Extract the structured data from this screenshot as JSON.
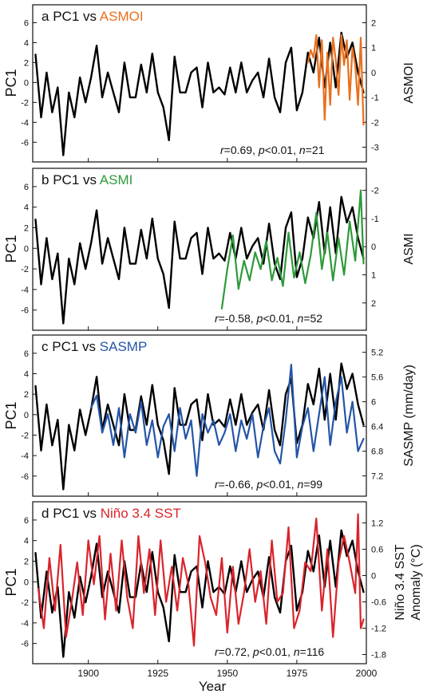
{
  "figure": {
    "xlabel": "Year",
    "xticks": [
      1900,
      1925,
      1950,
      1975,
      2000
    ],
    "xlim": [
      1880,
      2000
    ]
  },
  "chart_data": [
    {
      "type": "line",
      "panel_letter": "a",
      "title_left": "PC1 vs",
      "title_right": "ASMOI",
      "ylabel": "PC1",
      "right_ylabel": "ASMOI",
      "ylim": [
        -7.5,
        7
      ],
      "yticks": [
        -6,
        -4,
        -2,
        0,
        2,
        4,
        6
      ],
      "right_ylim": [
        -3.4,
        2.4
      ],
      "right_yticks": [
        -3,
        -2,
        -1,
        0,
        1,
        2
      ],
      "right_inverted": false,
      "stat": {
        "r_label": "r",
        "r_value": "=0.69, ",
        "p_label": "p",
        "p_value": "<0.01, ",
        "n_label": "n",
        "n_value": "=21"
      },
      "series": [
        {
          "name": "PC1",
          "color": "#000000",
          "axis": "left",
          "x": [
            1881,
            1883,
            1885,
            1887,
            1889,
            1891,
            1893,
            1895,
            1897,
            1899,
            1901,
            1903,
            1905,
            1907,
            1909,
            1911,
            1913,
            1915,
            1917,
            1919,
            1921,
            1923,
            1925,
            1927,
            1929,
            1931,
            1933,
            1935,
            1937,
            1939,
            1941,
            1943,
            1945,
            1947,
            1949,
            1951,
            1953,
            1955,
            1957,
            1959,
            1961,
            1963,
            1965,
            1967,
            1969,
            1971,
            1973,
            1975,
            1977,
            1979,
            1981,
            1983,
            1985,
            1987,
            1989,
            1991,
            1993,
            1995,
            1997,
            1999
          ],
          "values": [
            2.8,
            -3.5,
            1,
            -3,
            -0.5,
            -7.3,
            -1,
            -3.5,
            0.5,
            -2,
            0.5,
            3.7,
            -1.5,
            1,
            -1,
            -3,
            2,
            -1.5,
            -1.5,
            1.8,
            -1,
            2.9,
            -1,
            -2.5,
            -5.8,
            2.6,
            -1,
            -1,
            1,
            1.5,
            -2.5,
            2,
            -1,
            -0.5,
            -1.2,
            1.5,
            -1,
            2,
            -1,
            0.2,
            1,
            -1.5,
            2.4,
            -1.5,
            -3,
            2,
            3.5,
            -2.8,
            -1,
            3,
            1,
            4.5,
            -0.5,
            4,
            -0.5,
            5,
            2.5,
            4,
            1,
            -1
          ]
        },
        {
          "name": "ASMOI",
          "color": "#e8701e",
          "axis": "right",
          "x": [
            1979,
            1980,
            1981,
            1982,
            1983,
            1984,
            1985,
            1986,
            1987,
            1988,
            1989,
            1990,
            1991,
            1992,
            1993,
            1994,
            1995,
            1996,
            1997,
            1998,
            1999
          ],
          "values": [
            0.4,
            0.9,
            0.6,
            1.5,
            -0.6,
            1.3,
            -1.9,
            0.8,
            -1.3,
            1.4,
            0.5,
            -0.9,
            1.5,
            0.3,
            1.3,
            -1.1,
            1.0,
            0.3,
            -1.3,
            1.4,
            -2.1
          ]
        }
      ]
    },
    {
      "type": "line",
      "panel_letter": "b",
      "title_left": "PC1 vs",
      "title_right": "ASMI",
      "ylabel": "PC1",
      "right_ylabel": "ASMI",
      "ylim": [
        -7.5,
        7
      ],
      "yticks": [
        -6,
        -4,
        -2,
        0,
        2,
        4,
        6
      ],
      "right_ylim": [
        2.8,
        -2.5
      ],
      "right_yticks": [
        -2,
        -1,
        0,
        1,
        2
      ],
      "right_inverted": true,
      "stat": {
        "r_label": "r",
        "r_value": "=-0.58, ",
        "p_label": "p",
        "p_value": "<0.01, ",
        "n_label": "n",
        "n_value": "=52"
      },
      "series": [
        {
          "name": "PC1",
          "color": "#000000",
          "axis": "left",
          "x": [
            1881,
            1883,
            1885,
            1887,
            1889,
            1891,
            1893,
            1895,
            1897,
            1899,
            1901,
            1903,
            1905,
            1907,
            1909,
            1911,
            1913,
            1915,
            1917,
            1919,
            1921,
            1923,
            1925,
            1927,
            1929,
            1931,
            1933,
            1935,
            1937,
            1939,
            1941,
            1943,
            1945,
            1947,
            1949,
            1951,
            1953,
            1955,
            1957,
            1959,
            1961,
            1963,
            1965,
            1967,
            1969,
            1971,
            1973,
            1975,
            1977,
            1979,
            1981,
            1983,
            1985,
            1987,
            1989,
            1991,
            1993,
            1995,
            1997,
            1999
          ],
          "values": [
            2.8,
            -3.5,
            1,
            -3,
            -0.5,
            -7.3,
            -1,
            -3.5,
            0.5,
            -2,
            0.5,
            3.7,
            -1.5,
            1,
            -1,
            -3,
            2,
            -1.5,
            -1.5,
            1.8,
            -1,
            2.9,
            -1,
            -2.5,
            -5.8,
            2.6,
            -1,
            -1,
            1,
            1.5,
            -2.5,
            2,
            -1,
            -0.5,
            -1.2,
            1.5,
            -1,
            2,
            -1,
            0.2,
            1,
            -1.5,
            2.4,
            -1.5,
            -3,
            2,
            3.5,
            -2.8,
            -1,
            3,
            1,
            4.5,
            -0.5,
            4,
            -0.5,
            5,
            2.5,
            4,
            1,
            -1
          ]
        },
        {
          "name": "ASMI",
          "color": "#2e9a3a",
          "axis": "right",
          "x": [
            1948,
            1950,
            1952,
            1954,
            1956,
            1958,
            1960,
            1962,
            1964,
            1966,
            1968,
            1970,
            1972,
            1974,
            1976,
            1978,
            1980,
            1982,
            1984,
            1986,
            1988,
            1990,
            1992,
            1994,
            1996,
            1998,
            1999
          ],
          "values": [
            2.2,
            0.8,
            -0.4,
            1.5,
            0.5,
            1.2,
            0.2,
            0.8,
            -0.2,
            1.2,
            0.4,
            1.4,
            -0.5,
            1.1,
            0.2,
            1.3,
            0.3,
            -1.2,
            0.8,
            -0.5,
            1.2,
            -0.3,
            1.0,
            -0.9,
            0.5,
            -2.0,
            0.6
          ]
        }
      ]
    },
    {
      "type": "line",
      "panel_letter": "c",
      "title_left": "PC1 vs",
      "title_right": "SASMP",
      "ylabel": "PC1",
      "right_ylabel": "SASMP (mm/day)",
      "ylim": [
        -7.5,
        7
      ],
      "yticks": [
        -6,
        -4,
        -2,
        0,
        2,
        4,
        6
      ],
      "right_ylim": [
        7.45,
        5.05
      ],
      "right_yticks": [
        5.2,
        5.6,
        6,
        6.4,
        6.8,
        7.2
      ],
      "right_inverted": true,
      "stat": {
        "r_label": "r",
        "r_value": "=-0.66, ",
        "p_label": "p",
        "p_value": "<0.01, ",
        "n_label": "n",
        "n_value": "=99"
      },
      "series": [
        {
          "name": "PC1",
          "color": "#000000",
          "axis": "left",
          "x": [
            1881,
            1883,
            1885,
            1887,
            1889,
            1891,
            1893,
            1895,
            1897,
            1899,
            1901,
            1903,
            1905,
            1907,
            1909,
            1911,
            1913,
            1915,
            1917,
            1919,
            1921,
            1923,
            1925,
            1927,
            1929,
            1931,
            1933,
            1935,
            1937,
            1939,
            1941,
            1943,
            1945,
            1947,
            1949,
            1951,
            1953,
            1955,
            1957,
            1959,
            1961,
            1963,
            1965,
            1967,
            1969,
            1971,
            1973,
            1975,
            1977,
            1979,
            1981,
            1983,
            1985,
            1987,
            1989,
            1991,
            1993,
            1995,
            1997,
            1999
          ],
          "values": [
            2.8,
            -3.5,
            1,
            -3,
            -0.5,
            -7.3,
            -1,
            -3.5,
            0.5,
            -2,
            0.5,
            3.7,
            -1.5,
            1,
            -1,
            -3,
            2,
            -1.5,
            -1.5,
            1.8,
            -1,
            2.9,
            -1,
            -2.5,
            -5.8,
            2.6,
            -1,
            -1,
            1,
            1.5,
            -2.5,
            2,
            -1,
            -0.5,
            -1.2,
            1.5,
            -1,
            2,
            -1,
            0.2,
            1,
            -1.5,
            2.4,
            -1.5,
            -3,
            2,
            3.5,
            -2.8,
            -1,
            3,
            1,
            4.5,
            -0.5,
            4,
            -0.5,
            5,
            2.5,
            4,
            1,
            -1
          ]
        },
        {
          "name": "SASMP",
          "color": "#2455a8",
          "axis": "right",
          "x": [
            1901,
            1903,
            1905,
            1907,
            1909,
            1911,
            1913,
            1915,
            1917,
            1919,
            1921,
            1923,
            1925,
            1927,
            1929,
            1931,
            1933,
            1935,
            1937,
            1939,
            1941,
            1943,
            1945,
            1947,
            1949,
            1951,
            1953,
            1955,
            1957,
            1959,
            1961,
            1963,
            1965,
            1967,
            1969,
            1971,
            1973,
            1975,
            1977,
            1979,
            1981,
            1983,
            1985,
            1987,
            1989,
            1991,
            1993,
            1995,
            1997,
            1999
          ],
          "values": [
            6.1,
            5.9,
            6.5,
            6.2,
            6.7,
            6.1,
            6.9,
            6.2,
            6.5,
            6.0,
            6.7,
            6.3,
            6.9,
            6.4,
            6.2,
            6.8,
            6.1,
            6.6,
            6.3,
            7.2,
            6.2,
            6.5,
            6.3,
            6.7,
            6.5,
            6.2,
            6.8,
            6.3,
            6.6,
            6.2,
            6.9,
            6.4,
            6.1,
            6.8,
            7.0,
            6.3,
            5.4,
            6.9,
            6.4,
            6.1,
            6.8,
            6.2,
            5.6,
            6.7,
            6.0,
            5.6,
            6.5,
            6.0,
            6.8,
            6.6
          ]
        }
      ]
    },
    {
      "type": "line",
      "panel_letter": "d",
      "title_left": "PC1 vs",
      "title_right": "Niño 3.4 SST",
      "ylabel": "PC1",
      "right_ylabel_lines": [
        "Niño 3.4 SST",
        "Anomaly (°C)"
      ],
      "ylim": [
        -7.5,
        7
      ],
      "yticks": [
        -6,
        -4,
        -2,
        0,
        2,
        4,
        6
      ],
      "right_ylim": [
        -1.9,
        1.5
      ],
      "right_yticks": [
        -1.8,
        -1.2,
        -0.6,
        0,
        0.6,
        1.2
      ],
      "right_inverted": false,
      "stat": {
        "r_label": "r",
        "r_value": "=0.72, ",
        "p_label": "p",
        "p_value": "<0.01, ",
        "n_label": "n",
        "n_value": "=116"
      },
      "series": [
        {
          "name": "PC1",
          "color": "#000000",
          "axis": "left",
          "x": [
            1881,
            1883,
            1885,
            1887,
            1889,
            1891,
            1893,
            1895,
            1897,
            1899,
            1901,
            1903,
            1905,
            1907,
            1909,
            1911,
            1913,
            1915,
            1917,
            1919,
            1921,
            1923,
            1925,
            1927,
            1929,
            1931,
            1933,
            1935,
            1937,
            1939,
            1941,
            1943,
            1945,
            1947,
            1949,
            1951,
            1953,
            1955,
            1957,
            1959,
            1961,
            1963,
            1965,
            1967,
            1969,
            1971,
            1973,
            1975,
            1977,
            1979,
            1981,
            1983,
            1985,
            1987,
            1989,
            1991,
            1993,
            1995,
            1997,
            1999
          ],
          "values": [
            2.8,
            -3.5,
            1,
            -3,
            -0.5,
            -7.3,
            -1,
            -3.5,
            0.5,
            -2,
            0.5,
            3.7,
            -1.5,
            1,
            -1,
            -3,
            2,
            -1.5,
            -1.5,
            1.8,
            -1,
            2.9,
            -1,
            -2.5,
            -5.8,
            2.6,
            -1,
            -1,
            1,
            1.5,
            -2.5,
            2,
            -1,
            -0.5,
            -1.2,
            1.5,
            -1,
            2,
            -1,
            0.2,
            1,
            -1.5,
            2.4,
            -1.5,
            -3,
            2,
            3.5,
            -2.8,
            -1,
            3,
            1,
            4.5,
            -0.5,
            4,
            -0.5,
            5,
            2.5,
            4,
            1,
            -1
          ]
        },
        {
          "name": "Niño 3.4 SST",
          "color": "#d9242b",
          "axis": "right",
          "x": [
            1882,
            1884,
            1886,
            1888,
            1890,
            1892,
            1894,
            1896,
            1898,
            1900,
            1902,
            1904,
            1906,
            1908,
            1910,
            1912,
            1914,
            1916,
            1918,
            1920,
            1922,
            1924,
            1926,
            1928,
            1930,
            1932,
            1934,
            1936,
            1938,
            1940,
            1942,
            1944,
            1946,
            1948,
            1950,
            1952,
            1954,
            1956,
            1958,
            1960,
            1962,
            1964,
            1966,
            1968,
            1970,
            1972,
            1974,
            1976,
            1978,
            1980,
            1982,
            1984,
            1986,
            1988,
            1990,
            1992,
            1994,
            1996,
            1997,
            1998,
            1999
          ],
          "values": [
            -0.3,
            -1.2,
            0.4,
            -0.8,
            0.7,
            -1.4,
            -0.6,
            0.3,
            -0.9,
            0.8,
            -0.2,
            0.9,
            -1.0,
            0.5,
            -0.8,
            0.8,
            -0.5,
            -1.2,
            0.9,
            -0.4,
            0.6,
            -0.9,
            0.8,
            -0.6,
            0.2,
            -0.8,
            0.4,
            -0.2,
            -1.6,
            0.9,
            0.3,
            -0.5,
            -0.9,
            0.4,
            -1.3,
            0.2,
            -1.1,
            -0.4,
            0.6,
            -0.6,
            0.1,
            -1.1,
            0.8,
            -0.6,
            -0.4,
            1.1,
            -1.2,
            -0.8,
            0.3,
            0.1,
            1.3,
            -0.8,
            0.6,
            -1.4,
            0.3,
            0.9,
            0.3,
            -0.4,
            1.4,
            -1.2,
            -1.0
          ]
        }
      ]
    }
  ]
}
